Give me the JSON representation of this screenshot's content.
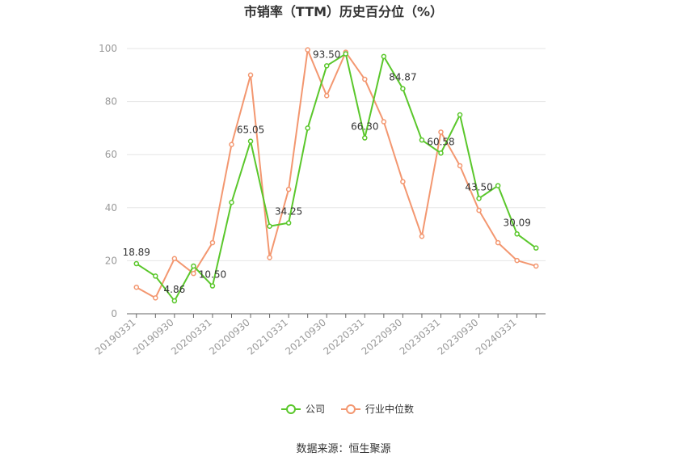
{
  "chart_data": {
    "type": "line",
    "title": "市销率（TTM）历史百分位（%）",
    "source": "数据来源：恒生聚源",
    "xlabel": "",
    "ylabel": "",
    "ylim": [
      0,
      100
    ],
    "yticks": [
      0,
      20,
      40,
      60,
      80,
      100
    ],
    "grid": true,
    "legend_position": "bottom-center",
    "x": [
      "20190331",
      "20190630",
      "20190930",
      "20191231",
      "20200331",
      "20200630",
      "20200930",
      "20201231",
      "20210331",
      "20210630",
      "20210930",
      "20211231",
      "20220331",
      "20220630",
      "20220930",
      "20221231",
      "20230331",
      "20230630",
      "20230930",
      "20231231",
      "20240331",
      "20240630"
    ],
    "x_tick_labels": [
      "20190331",
      "20190930",
      "20200331",
      "20200930",
      "20210331",
      "20210930",
      "20220331",
      "20220930",
      "20230331",
      "20230930",
      "20240331"
    ],
    "series": [
      {
        "name": "公司",
        "color": "#5ac72b",
        "values": [
          18.89,
          14.2,
          4.86,
          18.0,
          10.5,
          42.0,
          65.05,
          33.0,
          34.25,
          70.0,
          93.5,
          98.0,
          66.3,
          97.0,
          84.87,
          65.5,
          60.58,
          75.0,
          43.5,
          48.3,
          30.09,
          24.8
        ],
        "labels": {
          "0": "18.89",
          "2": "4.86",
          "4": "10.50",
          "6": "65.05",
          "8": "34.25",
          "10": "93.50",
          "12": "66.30",
          "14": "84.87",
          "16": "60.58",
          "18": "43.50",
          "20": "30.09"
        }
      },
      {
        "name": "行业中位数",
        "color": "#f39770",
        "values": [
          10.0,
          6.0,
          20.8,
          15.2,
          26.8,
          63.8,
          90.0,
          21.2,
          46.9,
          99.5,
          82.2,
          98.6,
          88.4,
          72.4,
          49.8,
          29.2,
          68.5,
          55.8,
          39.0,
          26.8,
          20.1,
          18.0
        ],
        "labels": {}
      }
    ]
  }
}
